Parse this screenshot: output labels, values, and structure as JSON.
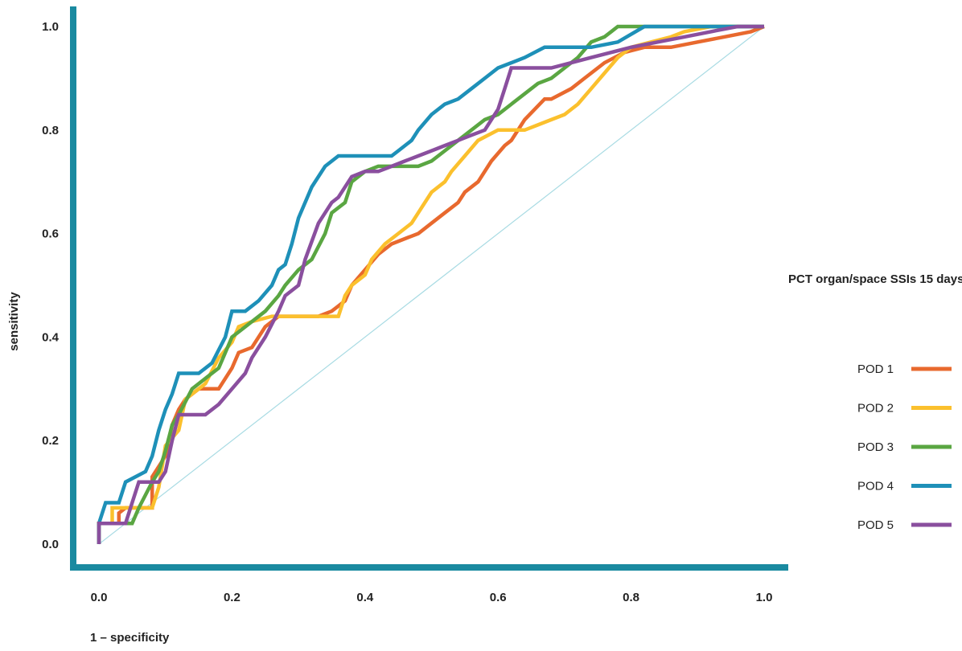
{
  "chart_data": {
    "type": "line",
    "xlabel": "1 – specificity",
    "ylabel": "sensitivity",
    "xlim": [
      0,
      1
    ],
    "ylim": [
      0,
      1
    ],
    "x_ticks": [
      "0.0",
      "0.2",
      "0.4",
      "0.6",
      "0.8",
      "1.0"
    ],
    "y_ticks": [
      "0.0",
      "0.2",
      "0.4",
      "0.6",
      "0.8",
      "1.0"
    ],
    "legend_title": "PCT organ/space SSIs 15 days",
    "legend_position": "right",
    "grid": false,
    "axis_color": "#1a8aa0",
    "reference_line": {
      "x": [
        0,
        1
      ],
      "y": [
        0,
        1
      ],
      "color": "#a8dbe3"
    },
    "series": [
      {
        "name": "POD 1",
        "color": "#e8692e",
        "x": [
          0.0,
          0.0,
          0.01,
          0.03,
          0.03,
          0.04,
          0.06,
          0.08,
          0.08,
          0.1,
          0.11,
          0.12,
          0.13,
          0.15,
          0.18,
          0.2,
          0.21,
          0.23,
          0.25,
          0.27,
          0.29,
          0.33,
          0.35,
          0.37,
          0.38,
          0.4,
          0.42,
          0.44,
          0.46,
          0.48,
          0.5,
          0.52,
          0.54,
          0.55,
          0.57,
          0.59,
          0.61,
          0.62,
          0.64,
          0.67,
          0.68,
          0.71,
          0.73,
          0.76,
          0.79,
          0.82,
          0.86,
          0.9,
          0.94,
          0.98,
          1.0
        ],
        "y": [
          0.0,
          0.04,
          0.04,
          0.04,
          0.06,
          0.07,
          0.07,
          0.07,
          0.13,
          0.17,
          0.23,
          0.26,
          0.28,
          0.3,
          0.3,
          0.34,
          0.37,
          0.38,
          0.42,
          0.44,
          0.44,
          0.44,
          0.45,
          0.47,
          0.5,
          0.53,
          0.56,
          0.58,
          0.59,
          0.6,
          0.62,
          0.64,
          0.66,
          0.68,
          0.7,
          0.74,
          0.77,
          0.78,
          0.82,
          0.86,
          0.86,
          0.88,
          0.9,
          0.93,
          0.95,
          0.96,
          0.96,
          0.97,
          0.98,
          0.99,
          1.0
        ]
      },
      {
        "name": "POD 2",
        "color": "#fbc02d",
        "x": [
          0.0,
          0.0,
          0.02,
          0.02,
          0.05,
          0.07,
          0.08,
          0.09,
          0.1,
          0.12,
          0.13,
          0.16,
          0.18,
          0.2,
          0.21,
          0.23,
          0.26,
          0.28,
          0.31,
          0.34,
          0.36,
          0.37,
          0.38,
          0.4,
          0.41,
          0.43,
          0.45,
          0.47,
          0.48,
          0.5,
          0.52,
          0.53,
          0.55,
          0.57,
          0.6,
          0.64,
          0.66,
          0.68,
          0.7,
          0.71,
          0.72,
          0.74,
          0.76,
          0.78,
          0.8,
          0.83,
          0.86,
          0.88,
          0.92,
          0.96,
          1.0
        ],
        "y": [
          0.0,
          0.04,
          0.04,
          0.07,
          0.07,
          0.07,
          0.07,
          0.11,
          0.19,
          0.22,
          0.28,
          0.31,
          0.36,
          0.39,
          0.42,
          0.43,
          0.44,
          0.44,
          0.44,
          0.44,
          0.44,
          0.48,
          0.5,
          0.52,
          0.55,
          0.58,
          0.6,
          0.62,
          0.64,
          0.68,
          0.7,
          0.72,
          0.75,
          0.78,
          0.8,
          0.8,
          0.81,
          0.82,
          0.83,
          0.84,
          0.85,
          0.88,
          0.91,
          0.94,
          0.96,
          0.97,
          0.98,
          0.99,
          1.0,
          1.0,
          1.0
        ]
      },
      {
        "name": "POD 3",
        "color": "#5aa642",
        "x": [
          0.0,
          0.0,
          0.02,
          0.05,
          0.06,
          0.08,
          0.09,
          0.1,
          0.11,
          0.12,
          0.14,
          0.16,
          0.18,
          0.2,
          0.21,
          0.23,
          0.25,
          0.27,
          0.28,
          0.3,
          0.32,
          0.34,
          0.35,
          0.37,
          0.38,
          0.4,
          0.42,
          0.44,
          0.46,
          0.48,
          0.5,
          0.52,
          0.54,
          0.56,
          0.58,
          0.6,
          0.62,
          0.64,
          0.66,
          0.68,
          0.7,
          0.72,
          0.74,
          0.76,
          0.78,
          0.82,
          0.86,
          0.9,
          0.95,
          1.0
        ],
        "y": [
          0.0,
          0.04,
          0.04,
          0.04,
          0.07,
          0.12,
          0.14,
          0.18,
          0.23,
          0.25,
          0.3,
          0.32,
          0.34,
          0.4,
          0.41,
          0.43,
          0.45,
          0.48,
          0.5,
          0.53,
          0.55,
          0.6,
          0.64,
          0.66,
          0.7,
          0.72,
          0.73,
          0.73,
          0.73,
          0.73,
          0.74,
          0.76,
          0.78,
          0.8,
          0.82,
          0.83,
          0.85,
          0.87,
          0.89,
          0.9,
          0.92,
          0.94,
          0.97,
          0.98,
          1.0,
          1.0,
          1.0,
          1.0,
          1.0,
          1.0
        ]
      },
      {
        "name": "POD 4",
        "color": "#1e90b8",
        "x": [
          0.0,
          0.0,
          0.01,
          0.03,
          0.04,
          0.07,
          0.08,
          0.09,
          0.1,
          0.11,
          0.12,
          0.15,
          0.17,
          0.19,
          0.2,
          0.22,
          0.24,
          0.26,
          0.27,
          0.28,
          0.29,
          0.3,
          0.32,
          0.34,
          0.36,
          0.38,
          0.4,
          0.42,
          0.44,
          0.45,
          0.47,
          0.48,
          0.5,
          0.52,
          0.54,
          0.56,
          0.58,
          0.6,
          0.62,
          0.64,
          0.67,
          0.7,
          0.74,
          0.78,
          0.82,
          0.86,
          0.9,
          0.95,
          1.0
        ],
        "y": [
          0.0,
          0.04,
          0.08,
          0.08,
          0.12,
          0.14,
          0.17,
          0.22,
          0.26,
          0.29,
          0.33,
          0.33,
          0.35,
          0.4,
          0.45,
          0.45,
          0.47,
          0.5,
          0.53,
          0.54,
          0.58,
          0.63,
          0.69,
          0.73,
          0.75,
          0.75,
          0.75,
          0.75,
          0.75,
          0.76,
          0.78,
          0.8,
          0.83,
          0.85,
          0.86,
          0.88,
          0.9,
          0.92,
          0.93,
          0.94,
          0.96,
          0.96,
          0.96,
          0.97,
          1.0,
          1.0,
          1.0,
          1.0,
          1.0
        ]
      },
      {
        "name": "POD 5",
        "color": "#8a4f9e",
        "x": [
          0.0,
          0.0,
          0.01,
          0.04,
          0.05,
          0.06,
          0.08,
          0.09,
          0.1,
          0.11,
          0.12,
          0.14,
          0.16,
          0.18,
          0.2,
          0.22,
          0.23,
          0.25,
          0.27,
          0.28,
          0.3,
          0.31,
          0.33,
          0.35,
          0.36,
          0.38,
          0.4,
          0.42,
          0.44,
          0.46,
          0.48,
          0.5,
          0.52,
          0.54,
          0.56,
          0.58,
          0.59,
          0.6,
          0.61,
          0.62,
          0.64,
          0.66,
          0.68,
          0.71,
          0.74,
          0.77,
          0.8,
          0.84,
          0.88,
          0.92,
          0.96,
          1.0
        ],
        "y": [
          0.0,
          0.04,
          0.04,
          0.04,
          0.08,
          0.12,
          0.12,
          0.12,
          0.14,
          0.2,
          0.25,
          0.25,
          0.25,
          0.27,
          0.3,
          0.33,
          0.36,
          0.4,
          0.45,
          0.48,
          0.5,
          0.55,
          0.62,
          0.66,
          0.67,
          0.71,
          0.72,
          0.72,
          0.73,
          0.74,
          0.75,
          0.76,
          0.77,
          0.78,
          0.79,
          0.8,
          0.82,
          0.84,
          0.88,
          0.92,
          0.92,
          0.92,
          0.92,
          0.93,
          0.94,
          0.95,
          0.96,
          0.97,
          0.98,
          0.99,
          1.0,
          1.0
        ]
      }
    ]
  }
}
